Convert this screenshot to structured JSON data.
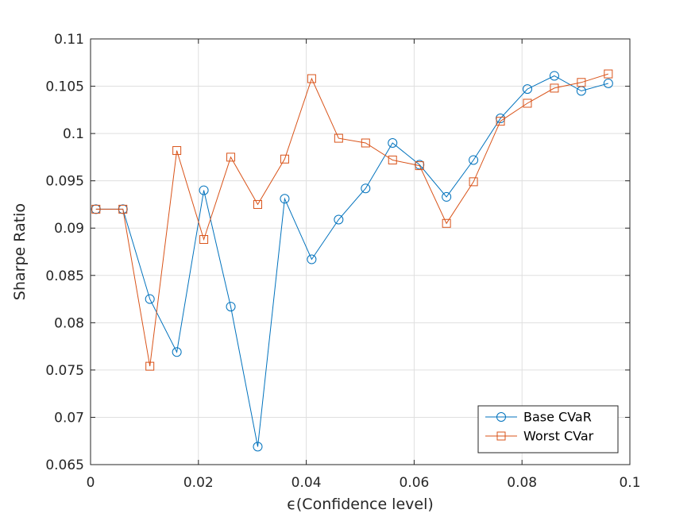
{
  "chart_data": {
    "type": "line",
    "title": "",
    "xlabel": "ϵ(Confidence level)",
    "ylabel": "Sharpe Ratio",
    "xlim": [
      0,
      0.1
    ],
    "ylim": [
      0.065,
      0.11
    ],
    "x_ticks": [
      "0",
      "0.02",
      "0.04",
      "0.06",
      "0.08",
      "0.1"
    ],
    "y_ticks": [
      "0.065",
      "0.07",
      "0.075",
      "0.08",
      "0.085",
      "0.09",
      "0.095",
      "0.1",
      "0.105",
      "0.11"
    ],
    "grid": true,
    "legend_position": "bottom-right",
    "x": [
      0.001,
      0.006,
      0.011,
      0.016,
      0.021,
      0.026,
      0.031,
      0.036,
      0.041,
      0.046,
      0.051,
      0.056,
      0.061,
      0.066,
      0.071,
      0.076,
      0.081,
      0.086,
      0.091,
      0.096
    ],
    "series": [
      {
        "name": "Base CVaR",
        "color": "#0072BD",
        "marker": "circle",
        "values": [
          0.092,
          0.092,
          0.0825,
          0.0769,
          0.094,
          0.0817,
          0.0669,
          0.0931,
          0.0867,
          0.0909,
          0.0942,
          0.099,
          0.0967,
          0.0933,
          0.0972,
          0.1016,
          0.1047,
          0.1061,
          0.1045,
          0.1053
        ]
      },
      {
        "name": "Worst CVar",
        "color": "#D95319",
        "marker": "square",
        "values": [
          0.092,
          0.092,
          0.0754,
          0.0982,
          0.0888,
          0.0975,
          0.0925,
          0.0973,
          0.1058,
          0.0995,
          0.099,
          0.0972,
          0.0966,
          0.0905,
          0.0949,
          0.1013,
          0.1032,
          0.1048,
          0.1054,
          0.1063
        ]
      }
    ]
  }
}
